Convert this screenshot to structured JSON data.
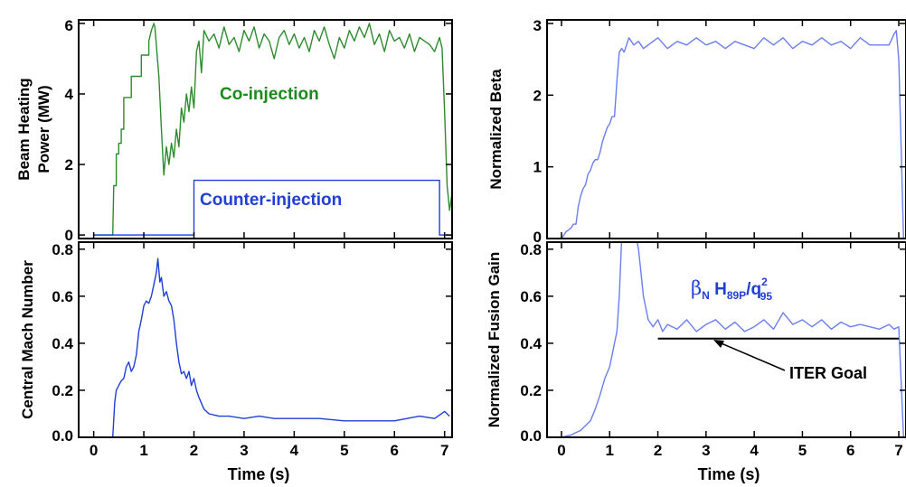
{
  "colors": {
    "co": "#2e8b2e",
    "counter": "#1f3fd6",
    "beta": "#6a7ef0",
    "gain": "#6a7ef0",
    "goal": "#000000"
  },
  "chart_data": [
    {
      "type": "line",
      "ylabel_line1": "Beam Heating",
      "ylabel_line2": "Power (MW)",
      "xlim": [
        -0.3,
        7.15
      ],
      "ylim": [
        -0.1,
        6.1
      ],
      "yticks": [
        "0",
        "2",
        "4",
        "6"
      ],
      "ytick_values": [
        0,
        2,
        4,
        6
      ],
      "series": [
        {
          "name": "Co-injection",
          "color_key": "co",
          "x": [
            0,
            0.38,
            0.4,
            0.45,
            0.45,
            0.5,
            0.5,
            0.55,
            0.55,
            0.6,
            0.6,
            0.75,
            0.75,
            0.95,
            0.95,
            1.1,
            1.1,
            1.15,
            1.2,
            1.22,
            1.3,
            1.35,
            1.4,
            1.45,
            1.5,
            1.55,
            1.6,
            1.65,
            1.7,
            1.75,
            1.8,
            1.85,
            1.9,
            1.95,
            2.0,
            2.05,
            2.1,
            2.15,
            2.2,
            2.3,
            2.4,
            2.5,
            2.6,
            2.7,
            2.8,
            2.9,
            3.0,
            3.1,
            3.2,
            3.3,
            3.4,
            3.5,
            3.6,
            3.7,
            3.8,
            3.9,
            4.0,
            4.1,
            4.2,
            4.3,
            4.4,
            4.5,
            4.6,
            4.7,
            4.8,
            4.9,
            5.0,
            5.1,
            5.2,
            5.3,
            5.4,
            5.5,
            5.6,
            5.7,
            5.8,
            5.9,
            6.0,
            6.1,
            6.2,
            6.3,
            6.4,
            6.5,
            6.6,
            6.7,
            6.8,
            6.9,
            6.95,
            7.0,
            7.05,
            7.1,
            7.15
          ],
          "y": [
            0,
            0,
            1.4,
            1.4,
            2.3,
            2.3,
            2.6,
            2.6,
            3.0,
            3.0,
            3.9,
            3.9,
            4.5,
            4.5,
            5.1,
            5.1,
            5.5,
            5.8,
            6.0,
            5.9,
            4.5,
            3.0,
            1.7,
            2.5,
            2.0,
            2.6,
            2.2,
            3.0,
            2.5,
            3.6,
            3.2,
            4.0,
            3.5,
            4.2,
            3.6,
            5.2,
            5.5,
            4.6,
            5.8,
            5.5,
            5.7,
            5.3,
            5.9,
            5.4,
            5.6,
            5.2,
            5.8,
            5.5,
            5.9,
            5.3,
            5.7,
            5.5,
            5.0,
            5.6,
            5.8,
            5.4,
            5.7,
            5.3,
            5.6,
            5.2,
            5.8,
            5.5,
            5.9,
            5.4,
            5.0,
            5.6,
            5.3,
            5.8,
            5.5,
            5.9,
            5.6,
            6.0,
            5.4,
            5.7,
            5.2,
            5.8,
            5.5,
            5.6,
            5.3,
            5.7,
            5.2,
            5.6,
            5.5,
            5.4,
            5.2,
            5.6,
            5.3,
            3.5,
            1.4,
            0.7,
            1.2
          ]
        },
        {
          "name": "Counter-injection",
          "color_key": "counter",
          "x": [
            0,
            2.0,
            2.0,
            6.9,
            6.9,
            7.15
          ],
          "y": [
            0,
            0,
            1.55,
            1.55,
            0,
            0
          ]
        }
      ],
      "annotations": [
        {
          "text": "Co-injection",
          "at_x": 2.3,
          "at_y": 4.0,
          "color_key": "co"
        },
        {
          "text": "Counter-injection",
          "at_x": 2.2,
          "at_y": 1.0,
          "color_key": "counter"
        }
      ]
    },
    {
      "type": "line",
      "ylabel": "Central Mach Number",
      "xlabel": "Time (s)",
      "xlim": [
        -0.3,
        7.15
      ],
      "ylim": [
        0,
        0.83
      ],
      "xticks": [
        "0",
        "1",
        "2",
        "3",
        "4",
        "5",
        "6",
        "7"
      ],
      "xtick_values": [
        0,
        1,
        2,
        3,
        4,
        5,
        6,
        7
      ],
      "yticks": [
        "0.0",
        "0.2",
        "0.4",
        "0.6",
        "0.8"
      ],
      "ytick_values": [
        0,
        0.2,
        0.4,
        0.6,
        0.8
      ],
      "series": [
        {
          "color_key": "counter",
          "x": [
            0.38,
            0.42,
            0.45,
            0.5,
            0.55,
            0.6,
            0.65,
            0.7,
            0.75,
            0.8,
            0.85,
            0.9,
            0.95,
            1.0,
            1.05,
            1.1,
            1.15,
            1.2,
            1.25,
            1.28,
            1.32,
            1.35,
            1.4,
            1.45,
            1.5,
            1.55,
            1.6,
            1.65,
            1.7,
            1.75,
            1.8,
            1.85,
            1.9,
            1.95,
            2.0,
            2.05,
            2.1,
            2.2,
            2.3,
            2.5,
            2.7,
            3.0,
            3.3,
            3.6,
            4.0,
            4.5,
            5.0,
            5.5,
            6.0,
            6.5,
            6.8,
            7.0,
            7.1
          ],
          "y": [
            0.0,
            0.15,
            0.2,
            0.22,
            0.24,
            0.25,
            0.3,
            0.32,
            0.28,
            0.3,
            0.35,
            0.45,
            0.5,
            0.56,
            0.58,
            0.57,
            0.6,
            0.65,
            0.7,
            0.76,
            0.66,
            0.68,
            0.6,
            0.62,
            0.58,
            0.56,
            0.5,
            0.4,
            0.32,
            0.27,
            0.28,
            0.25,
            0.28,
            0.22,
            0.25,
            0.2,
            0.17,
            0.12,
            0.1,
            0.09,
            0.09,
            0.08,
            0.09,
            0.08,
            0.08,
            0.08,
            0.07,
            0.07,
            0.07,
            0.09,
            0.08,
            0.11,
            0.09
          ]
        }
      ]
    },
    {
      "type": "line",
      "ylabel": "Normalized Beta",
      "xlim": [
        -0.3,
        7.15
      ],
      "ylim": [
        0,
        3.05
      ],
      "yticks": [
        "0",
        "1",
        "2",
        "3"
      ],
      "ytick_values": [
        0,
        1,
        2,
        3
      ],
      "series": [
        {
          "color_key": "beta",
          "x": [
            0,
            0.05,
            0.1,
            0.15,
            0.2,
            0.25,
            0.3,
            0.35,
            0.4,
            0.45,
            0.5,
            0.55,
            0.6,
            0.65,
            0.7,
            0.75,
            0.8,
            0.85,
            0.9,
            0.95,
            1.0,
            1.05,
            1.1,
            1.15,
            1.2,
            1.25,
            1.3,
            1.4,
            1.5,
            1.6,
            1.7,
            1.8,
            1.9,
            2.0,
            2.2,
            2.4,
            2.6,
            2.8,
            3.0,
            3.2,
            3.4,
            3.6,
            3.8,
            4.0,
            4.2,
            4.4,
            4.6,
            4.8,
            5.0,
            5.2,
            5.4,
            5.6,
            5.8,
            6.0,
            6.2,
            6.4,
            6.6,
            6.8,
            6.9,
            6.95,
            7.0,
            7.1
          ],
          "y": [
            0.0,
            0.05,
            0.1,
            0.12,
            0.15,
            0.2,
            0.2,
            0.45,
            0.6,
            0.7,
            0.75,
            0.9,
            0.95,
            1.05,
            1.1,
            1.1,
            1.2,
            1.35,
            1.45,
            1.55,
            1.6,
            1.7,
            1.7,
            2.2,
            2.6,
            2.65,
            2.6,
            2.8,
            2.7,
            2.75,
            2.65,
            2.7,
            2.75,
            2.8,
            2.65,
            2.75,
            2.7,
            2.8,
            2.7,
            2.75,
            2.65,
            2.75,
            2.7,
            2.65,
            2.8,
            2.7,
            2.8,
            2.65,
            2.75,
            2.7,
            2.8,
            2.7,
            2.75,
            2.65,
            2.8,
            2.7,
            2.7,
            2.7,
            2.85,
            2.9,
            2.5,
            0.0
          ]
        }
      ]
    },
    {
      "type": "line",
      "ylabel": "Normalized Fusion Gain",
      "xlabel": "Time (s)",
      "xlim": [
        -0.3,
        7.15
      ],
      "ylim": [
        0,
        0.83
      ],
      "xticks": [
        "0",
        "1",
        "2",
        "3",
        "4",
        "5",
        "6",
        "7"
      ],
      "xtick_values": [
        0,
        1,
        2,
        3,
        4,
        5,
        6,
        7
      ],
      "yticks": [
        "0.0",
        "0.2",
        "0.4",
        "0.6",
        "0.8"
      ],
      "ytick_values": [
        0,
        0.2,
        0.4,
        0.6,
        0.8
      ],
      "series": [
        {
          "color_key": "gain",
          "x": [
            0,
            0.2,
            0.3,
            0.4,
            0.5,
            0.6,
            0.7,
            0.8,
            0.9,
            1.0,
            1.1,
            1.15,
            1.2,
            1.25,
            1.3,
            1.5,
            1.6,
            1.7,
            1.8,
            1.9,
            2.0,
            2.1,
            2.2,
            2.4,
            2.6,
            2.8,
            3.0,
            3.2,
            3.4,
            3.6,
            3.8,
            4.0,
            4.2,
            4.4,
            4.6,
            4.8,
            5.0,
            5.2,
            5.4,
            5.6,
            5.8,
            6.0,
            6.2,
            6.4,
            6.6,
            6.8,
            6.9,
            7.0,
            7.1
          ],
          "y": [
            0.0,
            0.01,
            0.02,
            0.03,
            0.05,
            0.07,
            0.12,
            0.18,
            0.25,
            0.3,
            0.4,
            0.45,
            0.6,
            0.85,
            0.9,
            0.9,
            0.8,
            0.6,
            0.5,
            0.47,
            0.5,
            0.45,
            0.48,
            0.46,
            0.5,
            0.45,
            0.48,
            0.5,
            0.46,
            0.49,
            0.45,
            0.47,
            0.5,
            0.46,
            0.53,
            0.48,
            0.5,
            0.47,
            0.5,
            0.46,
            0.49,
            0.47,
            0.48,
            0.47,
            0.46,
            0.48,
            0.46,
            0.47,
            0.0
          ]
        },
        {
          "name": "ITER Goal",
          "color_key": "goal",
          "x": [
            2.0,
            7.0
          ],
          "y": [
            0.42,
            0.42
          ]
        }
      ],
      "annotations": [
        {
          "text": "ITER Goal",
          "color_key": "goal"
        },
        {
          "formula": {
            "beta": "β",
            "beta_sub": "N",
            "h": " H",
            "h_sub": "89P",
            "slash": "/q",
            "q_sup": "2",
            "q_sub": "95"
          },
          "color_key": "counter"
        }
      ]
    }
  ]
}
